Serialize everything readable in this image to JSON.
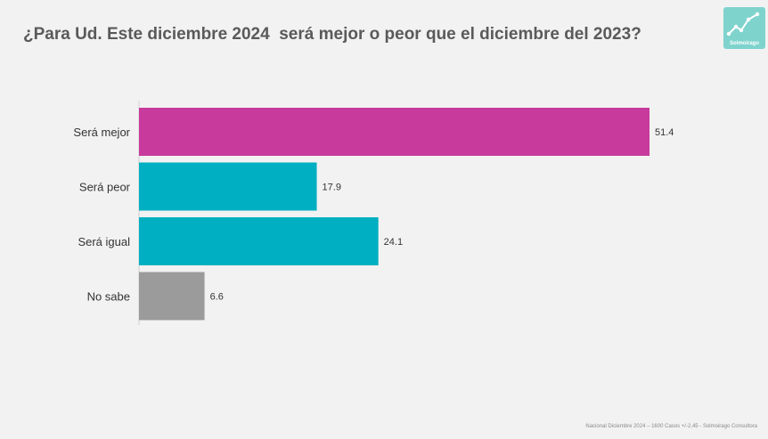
{
  "title": "¿Para Ud. Este diciembre 2024  será mejor o peor que el diciembre del 2023?",
  "logo": {
    "text": "Solmoirago",
    "icon": "trend-chart-icon"
  },
  "footer": "Nacional Diciembre 2024 – 1600 Casos +/-2,45 - Solmoirago Consultora",
  "chart_data": {
    "type": "bar",
    "orientation": "horizontal",
    "categories": [
      "Será mejor",
      "Será peor",
      "Será igual",
      "No sabe"
    ],
    "values": [
      51.4,
      17.9,
      24.1,
      6.6
    ],
    "value_labels": [
      "51.4",
      "17.9",
      "24.1",
      "6.6"
    ],
    "colors": [
      "#c83a9b",
      "#00afc1",
      "#00afc1",
      "#9b9b9b"
    ],
    "title": "¿Para Ud. Este diciembre 2024  será mejor o peor que el diciembre del 2023?",
    "xlim": [
      0,
      60
    ],
    "grid": false,
    "legend": "none"
  }
}
